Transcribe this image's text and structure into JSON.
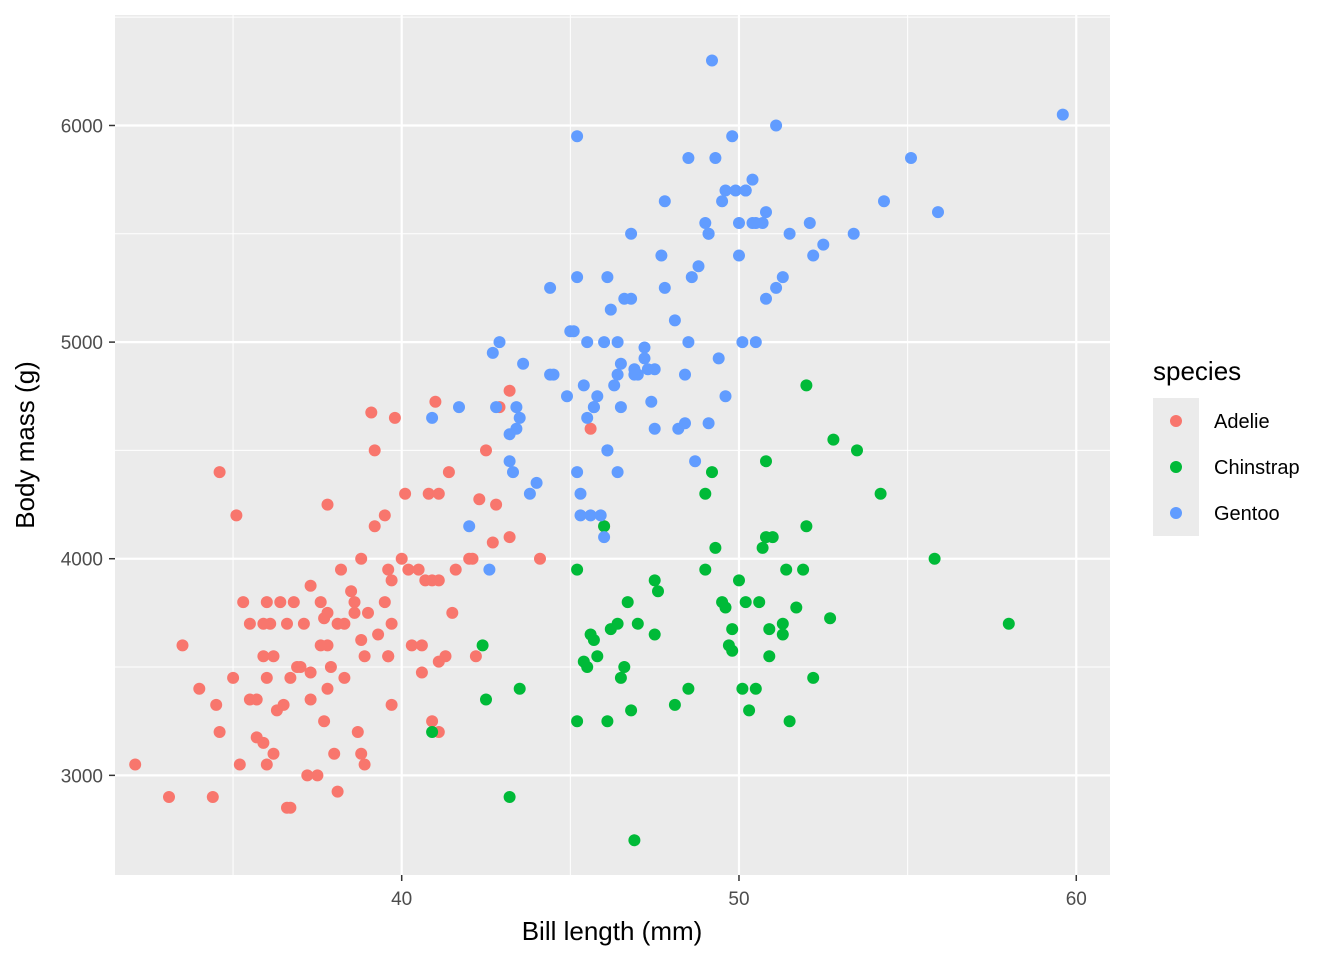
{
  "chart_data": {
    "type": "scatter",
    "xlabel": "Bill length (mm)",
    "ylabel": "Body mass (g)",
    "xlim": [
      31.5,
      61.0
    ],
    "ylim": [
      2540,
      6510
    ],
    "x_ticks": [
      40,
      50,
      60
    ],
    "y_ticks": [
      3000,
      4000,
      5000,
      6000
    ],
    "grid": true,
    "legend": {
      "title": "species",
      "position": "right"
    },
    "series": [
      {
        "name": "Adelie",
        "color": "#F8766D",
        "points": [
          [
            32.1,
            3050
          ],
          [
            33.1,
            2900
          ],
          [
            33.5,
            3600
          ],
          [
            34.0,
            3400
          ],
          [
            34.4,
            2900
          ],
          [
            34.5,
            3325
          ],
          [
            34.6,
            4400
          ],
          [
            34.6,
            3200
          ],
          [
            35.0,
            3450
          ],
          [
            35.1,
            4200
          ],
          [
            35.2,
            3050
          ],
          [
            35.3,
            3800
          ],
          [
            35.5,
            3350
          ],
          [
            35.5,
            3700
          ],
          [
            35.7,
            3350
          ],
          [
            35.7,
            3175
          ],
          [
            35.9,
            3550
          ],
          [
            35.9,
            3150
          ],
          [
            36.0,
            3800
          ],
          [
            36.0,
            3050
          ],
          [
            36.0,
            3450
          ],
          [
            36.1,
            3700
          ],
          [
            36.2,
            3100
          ],
          [
            36.2,
            3550
          ],
          [
            36.3,
            3300
          ],
          [
            36.4,
            3800
          ],
          [
            36.5,
            3325
          ],
          [
            36.6,
            2850
          ],
          [
            36.7,
            3450
          ],
          [
            36.7,
            2850
          ],
          [
            36.8,
            3800
          ],
          [
            36.9,
            3500
          ],
          [
            37.0,
            3500
          ],
          [
            37.1,
            3700
          ],
          [
            37.2,
            3000
          ],
          [
            37.3,
            3475
          ],
          [
            37.3,
            3875
          ],
          [
            37.5,
            3000
          ],
          [
            37.6,
            3800
          ],
          [
            37.7,
            3725
          ],
          [
            37.7,
            3250
          ],
          [
            37.8,
            3750
          ],
          [
            37.8,
            3600
          ],
          [
            37.8,
            4250
          ],
          [
            37.9,
            3500
          ],
          [
            38.0,
            3100
          ],
          [
            38.1,
            2925
          ],
          [
            38.2,
            3950
          ],
          [
            38.3,
            3450
          ],
          [
            38.3,
            3700
          ],
          [
            38.5,
            3850
          ],
          [
            38.6,
            3800
          ],
          [
            38.6,
            3750
          ],
          [
            38.7,
            3200
          ],
          [
            38.8,
            4000
          ],
          [
            38.8,
            3625
          ],
          [
            38.9,
            3050
          ],
          [
            39.0,
            3750
          ],
          [
            39.1,
            4675
          ],
          [
            39.2,
            4500
          ],
          [
            39.3,
            3650
          ],
          [
            39.5,
            4200
          ],
          [
            39.5,
            3800
          ],
          [
            39.6,
            3550
          ],
          [
            39.6,
            3950
          ],
          [
            39.7,
            3700
          ],
          [
            39.8,
            4650
          ],
          [
            40.0,
            4000
          ],
          [
            40.1,
            4300
          ],
          [
            40.2,
            3950
          ],
          [
            40.3,
            3600
          ],
          [
            40.5,
            3950
          ],
          [
            40.6,
            3600
          ],
          [
            40.7,
            3900
          ],
          [
            40.8,
            4300
          ],
          [
            40.9,
            3900
          ],
          [
            41.0,
            4725
          ],
          [
            41.1,
            4300
          ],
          [
            41.1,
            3900
          ],
          [
            41.3,
            3550
          ],
          [
            41.4,
            4400
          ],
          [
            41.5,
            3750
          ],
          [
            41.6,
            3950
          ],
          [
            42.0,
            4000
          ],
          [
            42.1,
            4000
          ],
          [
            42.2,
            3550
          ],
          [
            42.3,
            4275
          ],
          [
            42.5,
            4500
          ],
          [
            42.7,
            4075
          ],
          [
            42.8,
            4250
          ],
          [
            42.9,
            4700
          ],
          [
            43.2,
            4775
          ],
          [
            44.1,
            4000
          ],
          [
            45.6,
            4600
          ],
          [
            46.0,
            4150
          ],
          [
            39.7,
            3325
          ],
          [
            41.1,
            3200
          ],
          [
            40.9,
            3250
          ],
          [
            36.6,
            3700
          ],
          [
            37.8,
            3400
          ],
          [
            38.8,
            3100
          ],
          [
            39.2,
            4150
          ],
          [
            39.7,
            3900
          ],
          [
            40.6,
            3475
          ],
          [
            41.1,
            3525
          ],
          [
            43.2,
            4100
          ],
          [
            39.6,
            3550
          ],
          [
            38.1,
            3700
          ],
          [
            37.6,
            3600
          ],
          [
            35.9,
            3700
          ],
          [
            37.3,
            3350
          ],
          [
            38.9,
            3550
          ]
        ]
      },
      {
        "name": "Chinstrap",
        "color": "#00BA38",
        "points": [
          [
            40.9,
            3200
          ],
          [
            42.4,
            3600
          ],
          [
            42.5,
            3350
          ],
          [
            43.2,
            2900
          ],
          [
            43.5,
            3400
          ],
          [
            45.2,
            3250
          ],
          [
            45.2,
            3950
          ],
          [
            45.4,
            3525
          ],
          [
            45.5,
            3500
          ],
          [
            45.6,
            3650
          ],
          [
            45.7,
            3625
          ],
          [
            45.8,
            3550
          ],
          [
            46.0,
            4150
          ],
          [
            46.1,
            3250
          ],
          [
            46.2,
            3675
          ],
          [
            46.4,
            3700
          ],
          [
            46.5,
            3450
          ],
          [
            46.6,
            3500
          ],
          [
            46.7,
            3800
          ],
          [
            46.8,
            3300
          ],
          [
            46.9,
            2700
          ],
          [
            47.0,
            3700
          ],
          [
            47.5,
            3900
          ],
          [
            47.6,
            3850
          ],
          [
            48.1,
            3325
          ],
          [
            48.5,
            3400
          ],
          [
            49.0,
            3950
          ],
          [
            49.0,
            4300
          ],
          [
            49.2,
            4400
          ],
          [
            49.3,
            4050
          ],
          [
            49.5,
            3800
          ],
          [
            49.6,
            3775
          ],
          [
            49.7,
            3600
          ],
          [
            49.8,
            3675
          ],
          [
            50.0,
            3900
          ],
          [
            50.1,
            3400
          ],
          [
            50.2,
            3800
          ],
          [
            50.3,
            3300
          ],
          [
            50.5,
            3400
          ],
          [
            50.6,
            3800
          ],
          [
            50.7,
            4050
          ],
          [
            50.8,
            4100
          ],
          [
            50.8,
            4450
          ],
          [
            50.9,
            3675
          ],
          [
            51.0,
            4100
          ],
          [
            51.3,
            3650
          ],
          [
            51.4,
            3950
          ],
          [
            51.5,
            3250
          ],
          [
            51.7,
            3775
          ],
          [
            51.9,
            3950
          ],
          [
            52.0,
            4150
          ],
          [
            52.0,
            4800
          ],
          [
            52.2,
            3450
          ],
          [
            52.7,
            3725
          ],
          [
            52.8,
            4550
          ],
          [
            53.5,
            4500
          ],
          [
            54.2,
            4300
          ],
          [
            55.8,
            4000
          ],
          [
            58.0,
            3700
          ],
          [
            49.8,
            3575
          ],
          [
            50.9,
            3550
          ],
          [
            51.3,
            3700
          ],
          [
            47.5,
            3650
          ]
        ]
      },
      {
        "name": "Gentoo",
        "color": "#619CFF",
        "points": [
          [
            40.9,
            4650
          ],
          [
            41.7,
            4700
          ],
          [
            42.0,
            4150
          ],
          [
            42.6,
            3950
          ],
          [
            42.7,
            4950
          ],
          [
            42.8,
            4700
          ],
          [
            42.9,
            5000
          ],
          [
            43.2,
            4450
          ],
          [
            43.3,
            4400
          ],
          [
            43.4,
            4600
          ],
          [
            43.5,
            4650
          ],
          [
            43.6,
            4900
          ],
          [
            43.8,
            4300
          ],
          [
            44.0,
            4350
          ],
          [
            44.4,
            5250
          ],
          [
            44.5,
            4850
          ],
          [
            44.9,
            4750
          ],
          [
            45.0,
            5050
          ],
          [
            45.1,
            5050
          ],
          [
            45.2,
            4400
          ],
          [
            45.2,
            5950
          ],
          [
            45.3,
            4300
          ],
          [
            45.4,
            4800
          ],
          [
            45.5,
            4650
          ],
          [
            45.5,
            5000
          ],
          [
            45.7,
            4700
          ],
          [
            45.8,
            4750
          ],
          [
            46.1,
            4500
          ],
          [
            46.2,
            5150
          ],
          [
            46.3,
            4800
          ],
          [
            46.4,
            4400
          ],
          [
            46.5,
            4700
          ],
          [
            46.6,
            5200
          ],
          [
            46.8,
            5200
          ],
          [
            46.8,
            5500
          ],
          [
            47.2,
            4975
          ],
          [
            47.3,
            4875
          ],
          [
            47.5,
            4600
          ],
          [
            47.7,
            5400
          ],
          [
            47.8,
            5650
          ],
          [
            48.1,
            5100
          ],
          [
            48.2,
            4600
          ],
          [
            48.4,
            4625
          ],
          [
            48.5,
            5850
          ],
          [
            48.6,
            5300
          ],
          [
            48.8,
            5350
          ],
          [
            49.0,
            5550
          ],
          [
            49.1,
            5500
          ],
          [
            49.2,
            6300
          ],
          [
            49.3,
            5850
          ],
          [
            49.4,
            4925
          ],
          [
            49.5,
            5650
          ],
          [
            49.6,
            4750
          ],
          [
            49.8,
            5950
          ],
          [
            50.0,
            5400
          ],
          [
            50.0,
            5550
          ],
          [
            50.1,
            5000
          ],
          [
            50.2,
            5700
          ],
          [
            50.4,
            5750
          ],
          [
            50.5,
            5550
          ],
          [
            50.5,
            5000
          ],
          [
            50.7,
            5550
          ],
          [
            50.8,
            5200
          ],
          [
            51.1,
            6000
          ],
          [
            51.3,
            5300
          ],
          [
            51.5,
            5500
          ],
          [
            52.1,
            5550
          ],
          [
            52.2,
            5400
          ],
          [
            52.5,
            5450
          ],
          [
            53.4,
            5500
          ],
          [
            54.3,
            5650
          ],
          [
            55.1,
            5850
          ],
          [
            55.9,
            5600
          ],
          [
            59.6,
            6050
          ],
          [
            46.1,
            5300
          ],
          [
            45.2,
            5300
          ],
          [
            47.8,
            5250
          ],
          [
            48.4,
            4850
          ],
          [
            49.1,
            5500
          ],
          [
            50.8,
            5600
          ],
          [
            51.1,
            5250
          ],
          [
            46.5,
            4900
          ],
          [
            47.0,
            4850
          ],
          [
            43.4,
            4700
          ],
          [
            45.7,
            4700
          ],
          [
            46.9,
            4850
          ],
          [
            47.4,
            4725
          ],
          [
            48.7,
            4450
          ],
          [
            49.1,
            4625
          ],
          [
            45.3,
            4200
          ],
          [
            45.6,
            4200
          ],
          [
            46.4,
            4850
          ],
          [
            44.4,
            4850
          ],
          [
            47.5,
            4875
          ],
          [
            43.2,
            4575
          ],
          [
            46.0,
            5000
          ],
          [
            47.2,
            4925
          ],
          [
            48.5,
            5000
          ],
          [
            50.4,
            5550
          ],
          [
            46.0,
            4100
          ],
          [
            46.1,
            4500
          ],
          [
            46.9,
            4875
          ],
          [
            49.6,
            5700
          ],
          [
            49.9,
            5700
          ],
          [
            50.2,
            5700
          ],
          [
            45.9,
            4200
          ],
          [
            46.4,
            5000
          ]
        ]
      }
    ]
  }
}
